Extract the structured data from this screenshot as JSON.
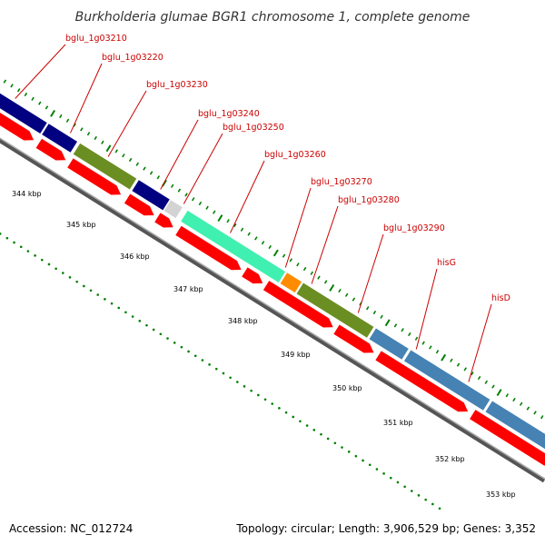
{
  "title": "Burkholderia glumae BGR1 chromosome 1, complete genome",
  "footer": {
    "accession": "Accession: NC_012724",
    "topology": "Topology: circular; Length: 3,906,529 bp; Genes: 3,352"
  },
  "colors": {
    "backbone": "#888888",
    "tick": "#008000",
    "label": "#cc0000",
    "cds": "#ff0000"
  },
  "gene_labels": [
    "bglu_1g03210",
    "bglu_1g03220",
    "bglu_1g03230",
    "bglu_1g03240",
    "bglu_1g03250",
    "bglu_1g03260",
    "bglu_1g03270",
    "bglu_1g03280",
    "bglu_1g03290",
    "hisG",
    "hisD"
  ],
  "kbp_labels": [
    "344 kbp",
    "345 kbp",
    "346 kbp",
    "347 kbp",
    "348 kbp",
    "349 kbp",
    "350 kbp",
    "351 kbp",
    "352 kbp",
    "353 kbp"
  ],
  "gene_track": [
    {
      "color": "#000080"
    },
    {
      "color": "#000080"
    },
    {
      "color": "#6b8e23"
    },
    {
      "color": "#000080"
    },
    {
      "color": "#d3d3d3"
    },
    {
      "color": "#40f0b0"
    },
    {
      "color": "#ff8c00"
    },
    {
      "color": "#6b8e23"
    },
    {
      "color": "#4682b4"
    },
    {
      "color": "#4682b4"
    },
    {
      "color": "#4682b4"
    }
  ]
}
